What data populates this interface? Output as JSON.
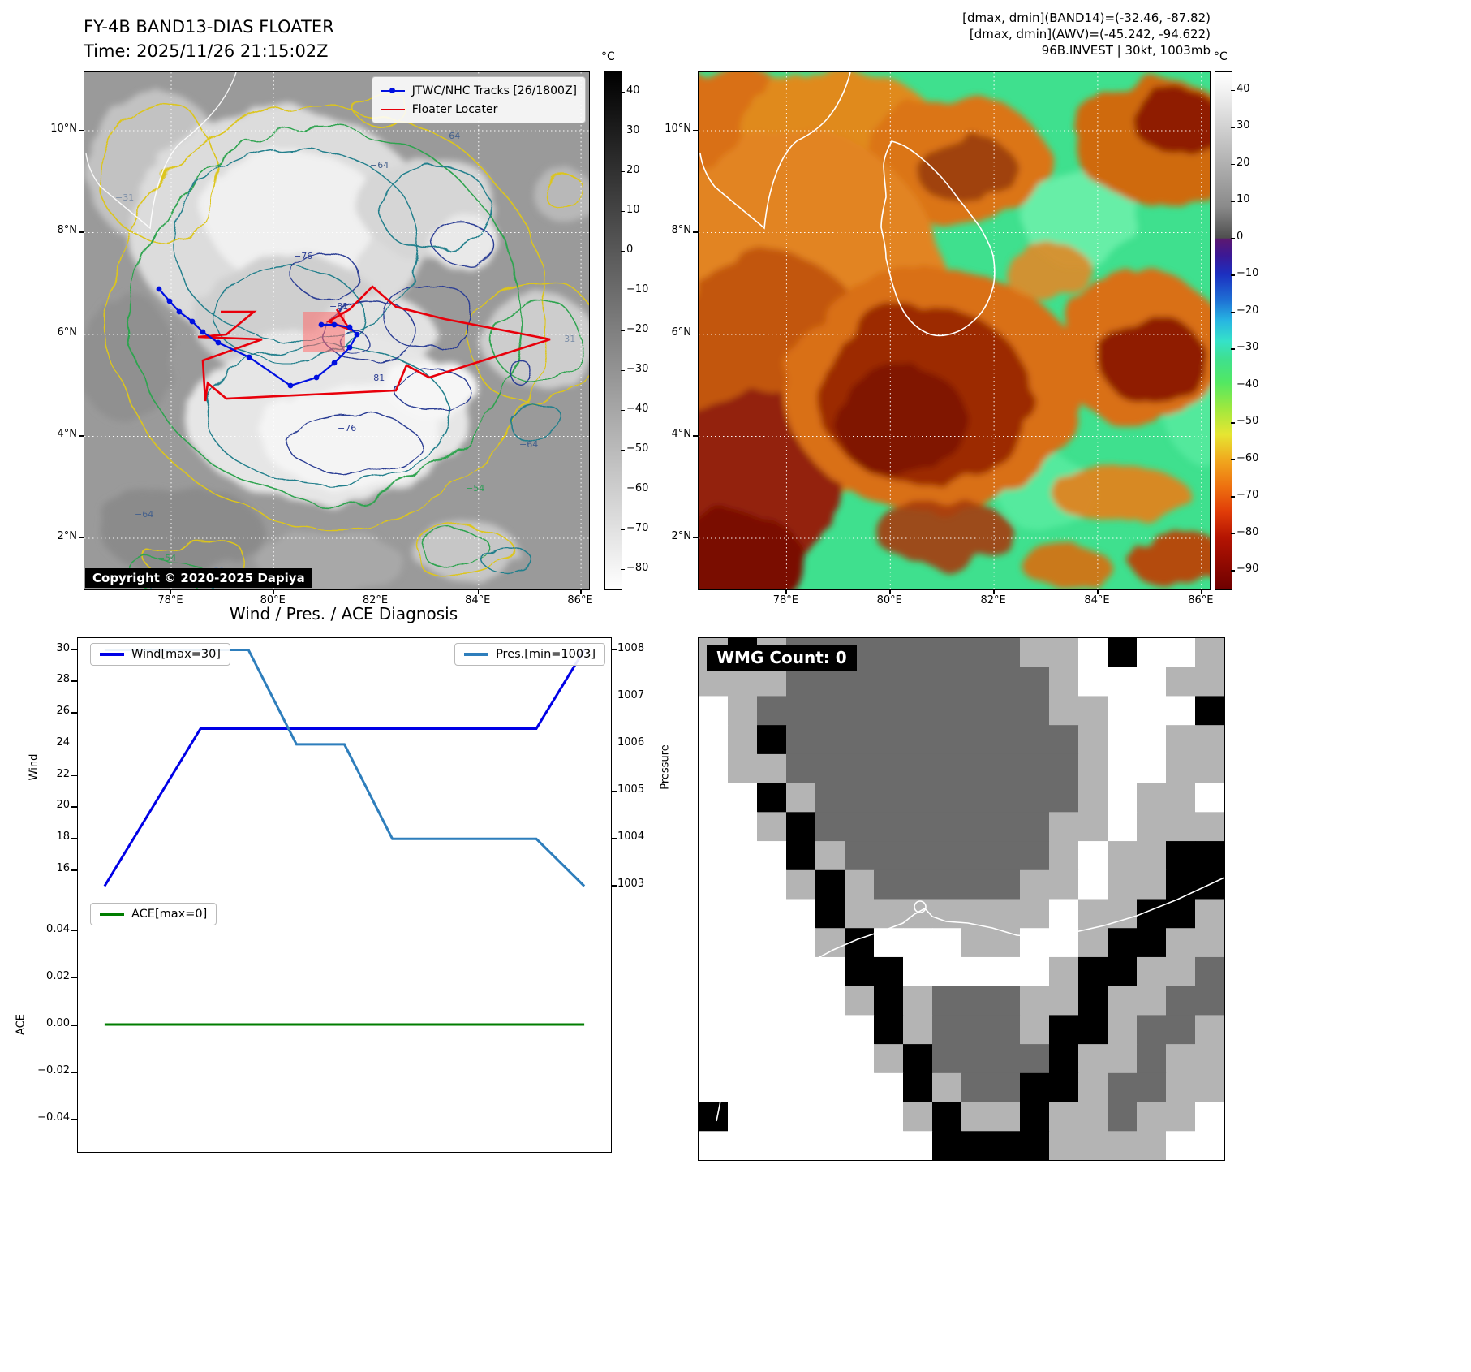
{
  "colors": {
    "track_blue": "#0010e0",
    "floater_red": "#e8000b",
    "wind_blue": "#0000e6",
    "pres_blue": "#2e7ebc",
    "ace_green": "#007d00"
  },
  "ir_panel": {
    "title": "FY-4B BAND13-DIAS FLOATER",
    "time": "Time: 2025/11/26 21:15:02Z",
    "legend": {
      "track": "JTWC/NHC Tracks [26/1800Z]",
      "floater": "Floater Locater"
    },
    "copyright": "Copyright © 2020-2025 Dapiya",
    "colorbar": {
      "unit": "°C",
      "ticks": [
        40,
        30,
        20,
        10,
        0,
        -10,
        -20,
        -30,
        -40,
        -50,
        -60,
        -70,
        -80
      ]
    },
    "lat_ticks": [
      "10°N",
      "8°N",
      "6°N",
      "4°N",
      "2°N"
    ],
    "lon_ticks": [
      "78°E",
      "80°E",
      "82°E",
      "84°E",
      "86°E"
    ],
    "contour_labels": [
      "-64",
      "-64",
      "-76",
      "-81",
      "-81",
      "-76",
      "-64",
      "-31",
      "-54",
      "-64",
      "-31",
      "-54",
      "-31"
    ]
  },
  "awv_panel": {
    "header_lines": [
      "[dmax, dmin](BAND14)=(-32.46, -87.82)",
      "[dmax, dmin](AWV)=(-45.242, -94.622)",
      "96B.INVEST | 30kt, 1003mb"
    ],
    "colorbar": {
      "unit": "°C",
      "ticks": [
        40,
        30,
        20,
        10,
        0,
        -10,
        -20,
        -30,
        -40,
        -50,
        -60,
        -70,
        -80,
        -90
      ]
    },
    "lat_ticks": [
      "10°N",
      "8°N",
      "6°N",
      "4°N",
      "2°N"
    ],
    "lon_ticks": [
      "78°E",
      "80°E",
      "82°E",
      "84°E",
      "86°E"
    ]
  },
  "diagnosis": {
    "title": "Wind / Pres. / ACE Diagnosis",
    "legends": {
      "wind": "Wind[max=30]",
      "pres": "Pres.[min=1003]",
      "ace": "ACE[max=0]"
    },
    "axis_labels": {
      "wind": "Wind",
      "pressure": "Pressure",
      "ace": "ACE"
    }
  },
  "chart_data": [
    {
      "type": "line",
      "title": "Wind / Pres. / ACE Diagnosis",
      "x": [
        0,
        1,
        2,
        3,
        4,
        5,
        6,
        7,
        8,
        9,
        10
      ],
      "series": [
        {
          "name": "Wind[max=30]",
          "yaxis": "left",
          "color": "#0000e6",
          "values": [
            15,
            20,
            25,
            25,
            25,
            25,
            25,
            25,
            25,
            25,
            30
          ]
        },
        {
          "name": "Pres.[min=1003]",
          "yaxis": "right",
          "color": "#2e7ebc",
          "values": [
            1008,
            1008,
            1008,
            1008,
            1006,
            1006,
            1004,
            1004,
            1004,
            1004,
            1003
          ]
        }
      ],
      "ylabel": "Wind",
      "y2label": "Pressure",
      "ylim": [
        14.25,
        30.75
      ],
      "y2lim": [
        1002.75,
        1008.25
      ],
      "yticks": [
        16,
        18,
        20,
        22,
        24,
        26,
        28,
        30
      ],
      "y2ticks": [
        1003,
        1004,
        1005,
        1006,
        1007,
        1008
      ],
      "legend_position": [
        "upper left",
        "upper right"
      ]
    },
    {
      "type": "line",
      "x": [
        0,
        10
      ],
      "series": [
        {
          "name": "ACE[max=0]",
          "color": "#007d00",
          "values": [
            0,
            0
          ]
        }
      ],
      "ylabel": "ACE",
      "ylim": [
        -0.054,
        0.054
      ],
      "yticks": [
        -0.04,
        -0.02,
        0,
        0.02,
        0.04
      ]
    }
  ],
  "wmg_panel": {
    "label": "WMG Count: 0",
    "palette": {
      "0": "#000000",
      "1": "#6b6b6b",
      "2": "#b4b4b4",
      "3": "#ffffff"
    },
    "grid": [
      [
        2,
        0,
        2,
        1,
        1,
        1,
        1,
        1,
        1,
        1,
        1,
        2,
        2,
        3,
        0,
        3,
        3,
        2
      ],
      [
        2,
        2,
        2,
        1,
        1,
        1,
        1,
        1,
        1,
        1,
        1,
        1,
        2,
        3,
        3,
        3,
        2,
        2
      ],
      [
        3,
        2,
        1,
        1,
        1,
        1,
        1,
        1,
        1,
        1,
        1,
        1,
        2,
        2,
        3,
        3,
        3,
        0
      ],
      [
        3,
        2,
        0,
        1,
        1,
        1,
        1,
        1,
        1,
        1,
        1,
        1,
        1,
        2,
        3,
        3,
        2,
        2
      ],
      [
        3,
        2,
        2,
        1,
        1,
        1,
        1,
        1,
        1,
        1,
        1,
        1,
        1,
        2,
        3,
        3,
        2,
        2
      ],
      [
        3,
        3,
        0,
        2,
        1,
        1,
        1,
        1,
        1,
        1,
        1,
        1,
        1,
        2,
        3,
        2,
        2,
        3
      ],
      [
        3,
        3,
        2,
        0,
        1,
        1,
        1,
        1,
        1,
        1,
        1,
        1,
        2,
        2,
        3,
        2,
        2,
        2
      ],
      [
        3,
        3,
        3,
        0,
        2,
        1,
        1,
        1,
        1,
        1,
        1,
        1,
        2,
        3,
        2,
        2,
        0,
        0
      ],
      [
        3,
        3,
        3,
        2,
        0,
        2,
        1,
        1,
        1,
        1,
        1,
        2,
        2,
        3,
        2,
        2,
        0,
        0
      ],
      [
        3,
        3,
        3,
        3,
        0,
        2,
        2,
        2,
        2,
        2,
        2,
        2,
        3,
        2,
        2,
        0,
        0,
        2
      ],
      [
        3,
        3,
        3,
        3,
        2,
        0,
        3,
        3,
        3,
        2,
        2,
        3,
        3,
        2,
        0,
        0,
        2,
        2
      ],
      [
        3,
        3,
        3,
        3,
        3,
        0,
        0,
        3,
        3,
        3,
        3,
        3,
        2,
        0,
        0,
        2,
        2,
        1
      ],
      [
        3,
        3,
        3,
        3,
        3,
        2,
        0,
        2,
        1,
        1,
        1,
        2,
        2,
        0,
        2,
        2,
        1,
        1
      ],
      [
        3,
        3,
        3,
        3,
        3,
        3,
        0,
        2,
        1,
        1,
        1,
        2,
        0,
        0,
        2,
        1,
        1,
        2
      ],
      [
        3,
        3,
        3,
        3,
        3,
        3,
        2,
        0,
        1,
        1,
        1,
        1,
        0,
        2,
        2,
        1,
        2,
        2
      ],
      [
        3,
        3,
        3,
        3,
        3,
        3,
        3,
        0,
        2,
        1,
        1,
        0,
        0,
        2,
        1,
        1,
        2,
        2
      ],
      [
        0,
        3,
        3,
        3,
        3,
        3,
        3,
        2,
        0,
        2,
        2,
        0,
        2,
        2,
        1,
        2,
        2,
        3
      ],
      [
        3,
        3,
        3,
        3,
        3,
        3,
        3,
        3,
        0,
        0,
        0,
        0,
        2,
        2,
        2,
        2,
        3,
        3
      ]
    ]
  }
}
